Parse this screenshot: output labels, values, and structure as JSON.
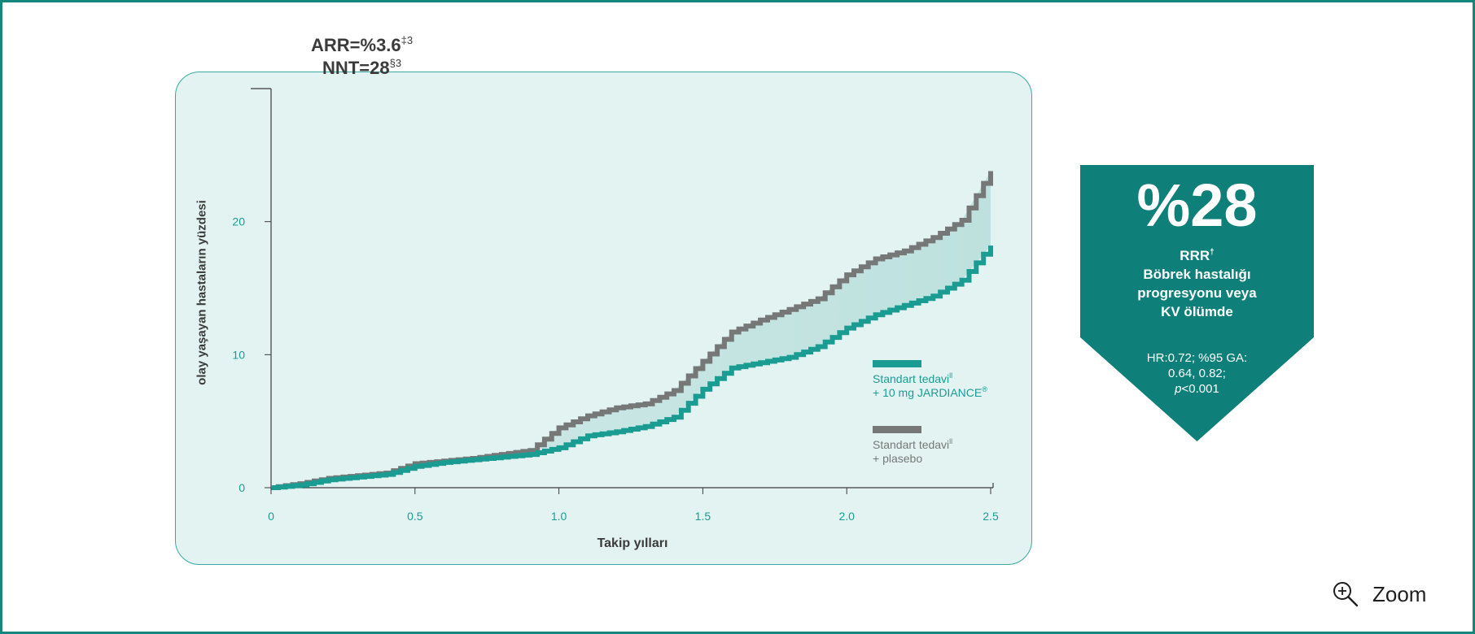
{
  "stats": {
    "arr_main": "ARR=%3.6",
    "arr_sup": "‡3",
    "nnt_main": "NNT=28",
    "nnt_sup": "§3"
  },
  "chart_data": {
    "type": "line",
    "xlabel": "Takip yılları",
    "ylabel": "olay yaşayan hastaların yüzdesi",
    "xlim": [
      0,
      2.5
    ],
    "ylim": [
      0,
      30
    ],
    "xticks": [
      0,
      0.5,
      1.0,
      1.5,
      2.0,
      2.5
    ],
    "xtick_labels": [
      "0",
      "0.5",
      "1.0",
      "1.5",
      "2.0",
      "2.5"
    ],
    "yticks": [
      0,
      10,
      20
    ],
    "ytick_labels": [
      "0",
      "10",
      "20"
    ],
    "series": [
      {
        "key": "jardiance",
        "color": "#1a9c92",
        "x": [
          0,
          0.1,
          0.2,
          0.3,
          0.4,
          0.5,
          0.6,
          0.7,
          0.8,
          0.9,
          1.0,
          1.1,
          1.2,
          1.3,
          1.4,
          1.5,
          1.6,
          1.7,
          1.8,
          1.9,
          2.0,
          2.1,
          2.2,
          2.3,
          2.4,
          2.5
        ],
        "values": [
          0,
          0.2,
          0.6,
          0.8,
          1.0,
          1.6,
          1.9,
          2.1,
          2.3,
          2.5,
          3.0,
          3.9,
          4.2,
          4.6,
          5.3,
          7.4,
          9.0,
          9.4,
          9.8,
          10.6,
          12.0,
          13.0,
          13.7,
          14.4,
          15.6,
          18.2
        ]
      },
      {
        "key": "placebo",
        "color": "#767878",
        "x": [
          0,
          0.1,
          0.2,
          0.3,
          0.4,
          0.5,
          0.6,
          0.7,
          0.8,
          0.9,
          1.0,
          1.1,
          1.2,
          1.3,
          1.4,
          1.5,
          1.6,
          1.7,
          1.8,
          1.9,
          2.0,
          2.1,
          2.2,
          2.3,
          2.4,
          2.5
        ],
        "values": [
          0,
          0.3,
          0.7,
          0.9,
          1.1,
          1.8,
          2.0,
          2.2,
          2.5,
          2.8,
          4.5,
          5.4,
          6.0,
          6.3,
          7.3,
          9.5,
          11.7,
          12.6,
          13.4,
          14.2,
          16.0,
          17.2,
          17.8,
          18.8,
          20.1,
          23.8
        ]
      }
    ]
  },
  "legend": {
    "jardiance_line1": "Standart tedavi",
    "jardiance_line1_sup": "ll",
    "jardiance_line2": "+ 10 mg JARDIANCE",
    "jardiance_line2_sup": "®",
    "placebo_line1": "Standart tedavi",
    "placebo_line1_sup": "ll",
    "placebo_line2": "+ plasebo"
  },
  "badge": {
    "big_value": "%28",
    "rrr_label": "RRR",
    "rrr_sup": "†",
    "line1": "Böbrek hastalığı",
    "line2": "progresyonu veya",
    "line3": "KV ölümde",
    "stat1": "HR:0.72; %95 GA:",
    "stat2": "0.64, 0.82;",
    "stat3_p": "p",
    "stat3_rest": "<0.001",
    "color": "#0e7f79"
  },
  "zoom": {
    "label": "Zoom"
  },
  "colors": {
    "accent": "#13877e",
    "panel_bg": "#e3f3f2",
    "tick_text": "#1a9c92"
  }
}
